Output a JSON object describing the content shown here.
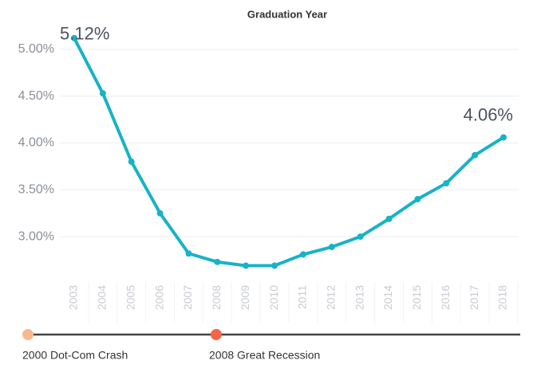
{
  "chart_data": {
    "type": "line",
    "title": "Graduation Year",
    "categories": [
      "2003",
      "2004",
      "2005",
      "2006",
      "2007",
      "2008",
      "2009",
      "2010",
      "2011",
      "2012",
      "2013",
      "2014",
      "2015",
      "2016",
      "2017",
      "2018"
    ],
    "values": [
      5.12,
      4.53,
      3.8,
      3.25,
      2.82,
      2.73,
      2.69,
      2.69,
      2.81,
      2.89,
      3.0,
      3.19,
      3.4,
      3.57,
      3.87,
      4.06
    ],
    "value_labels": [
      "5.12%",
      null,
      null,
      null,
      null,
      null,
      null,
      null,
      null,
      null,
      null,
      null,
      null,
      null,
      null,
      "4.06%"
    ],
    "color": "#17b3c6",
    "ylim": [
      2.55,
      5.2
    ],
    "yticks": [
      {
        "value": 3,
        "label": "3.00%"
      },
      {
        "value": 3.5,
        "label": "3.50%"
      },
      {
        "value": 4,
        "label": "4.00%"
      },
      {
        "value": 4.5,
        "label": "4.50%"
      },
      {
        "value": 5,
        "label": "5.00%"
      }
    ],
    "grid": true
  },
  "timeline": {
    "events": [
      {
        "label": "2000 Dot-Com Crash",
        "color": "#f8b98e"
      },
      {
        "label": "2008 Great Recession",
        "color": "#f26647"
      }
    ]
  }
}
